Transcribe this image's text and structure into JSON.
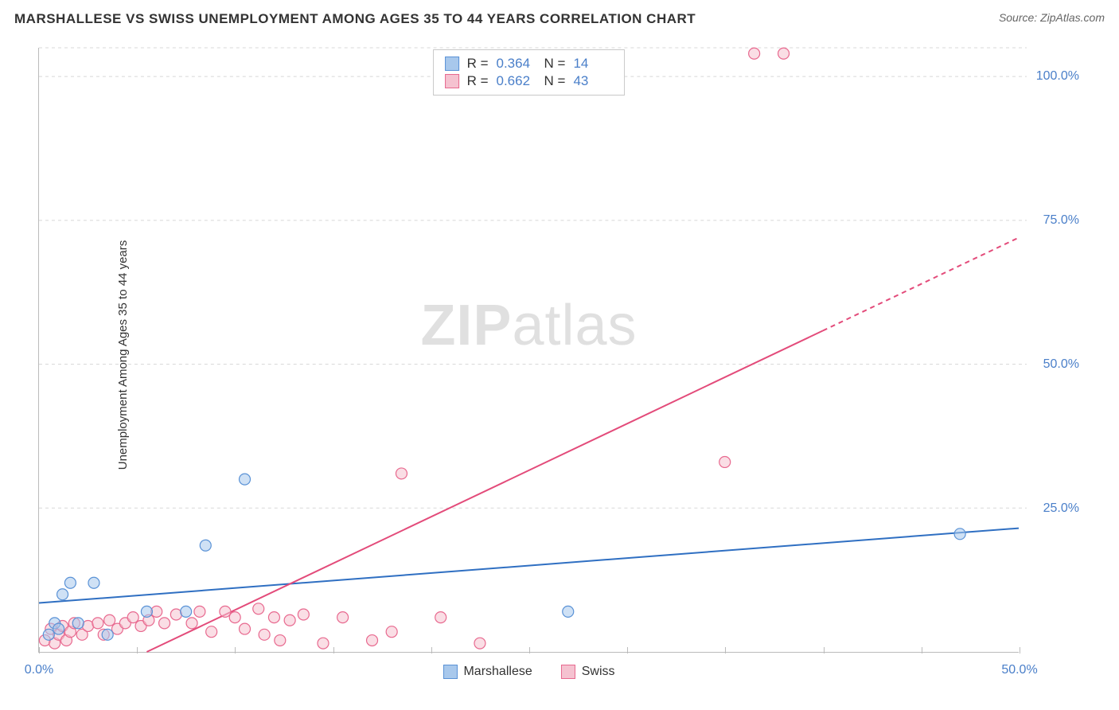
{
  "title": "MARSHALLESE VS SWISS UNEMPLOYMENT AMONG AGES 35 TO 44 YEARS CORRELATION CHART",
  "source_label": "Source: ZipAtlas.com",
  "y_axis_label": "Unemployment Among Ages 35 to 44 years",
  "watermark": {
    "zip": "ZIP",
    "atlas": "atlas"
  },
  "chart": {
    "type": "scatter",
    "xlim": [
      0,
      50
    ],
    "ylim": [
      0,
      105
    ],
    "x_ticks": [
      0,
      5,
      10,
      15,
      20,
      25,
      30,
      35,
      40,
      45,
      50
    ],
    "x_tick_labels": {
      "0": "0.0%",
      "50": "50.0%"
    },
    "y_ticks": [
      25,
      50,
      75,
      100,
      105
    ],
    "y_tick_labels": {
      "25": "25.0%",
      "50": "50.0%",
      "75": "75.0%",
      "100": "100.0%"
    },
    "grid_color": "#d8d8d8",
    "background_color": "#ffffff",
    "series": [
      {
        "name": "Marshallese",
        "color_fill": "#a8c8ec",
        "color_stroke": "#5a92d6",
        "marker_radius": 7,
        "R": "0.364",
        "N": "14",
        "trend": {
          "x1": 0,
          "y1": 8.5,
          "x2": 50,
          "y2": 21.5,
          "color": "#2f6fc2",
          "width": 2
        },
        "points": [
          {
            "x": 0.5,
            "y": 3
          },
          {
            "x": 0.8,
            "y": 5
          },
          {
            "x": 1.0,
            "y": 4
          },
          {
            "x": 1.2,
            "y": 10
          },
          {
            "x": 1.6,
            "y": 12
          },
          {
            "x": 2.0,
            "y": 5
          },
          {
            "x": 2.8,
            "y": 12
          },
          {
            "x": 3.5,
            "y": 3
          },
          {
            "x": 5.5,
            "y": 7
          },
          {
            "x": 7.5,
            "y": 7
          },
          {
            "x": 8.5,
            "y": 18.5
          },
          {
            "x": 10.5,
            "y": 30
          },
          {
            "x": 27.0,
            "y": 7
          },
          {
            "x": 47.0,
            "y": 20.5
          }
        ]
      },
      {
        "name": "Swiss",
        "color_fill": "#f5c2d0",
        "color_stroke": "#e8698f",
        "marker_radius": 7,
        "R": "0.662",
        "N": "43",
        "trend": {
          "x1": 5.5,
          "y1": 0,
          "x2": 50,
          "y2": 72,
          "color": "#e34b7a",
          "width": 2,
          "dash_after_x": 40
        },
        "points": [
          {
            "x": 0.3,
            "y": 2
          },
          {
            "x": 0.6,
            "y": 4
          },
          {
            "x": 0.8,
            "y": 1.5
          },
          {
            "x": 1.0,
            "y": 3
          },
          {
            "x": 1.2,
            "y": 4.5
          },
          {
            "x": 1.4,
            "y": 2
          },
          {
            "x": 1.6,
            "y": 3.5
          },
          {
            "x": 1.8,
            "y": 5
          },
          {
            "x": 2.2,
            "y": 3
          },
          {
            "x": 2.5,
            "y": 4.5
          },
          {
            "x": 3.0,
            "y": 5
          },
          {
            "x": 3.3,
            "y": 3
          },
          {
            "x": 3.6,
            "y": 5.5
          },
          {
            "x": 4.0,
            "y": 4
          },
          {
            "x": 4.4,
            "y": 5
          },
          {
            "x": 4.8,
            "y": 6
          },
          {
            "x": 5.2,
            "y": 4.5
          },
          {
            "x": 5.6,
            "y": 5.5
          },
          {
            "x": 6.0,
            "y": 7
          },
          {
            "x": 6.4,
            "y": 5
          },
          {
            "x": 7.0,
            "y": 6.5
          },
          {
            "x": 7.8,
            "y": 5
          },
          {
            "x": 8.2,
            "y": 7
          },
          {
            "x": 8.8,
            "y": 3.5
          },
          {
            "x": 9.5,
            "y": 7
          },
          {
            "x": 10.0,
            "y": 6
          },
          {
            "x": 10.5,
            "y": 4
          },
          {
            "x": 11.2,
            "y": 7.5
          },
          {
            "x": 11.5,
            "y": 3
          },
          {
            "x": 12.0,
            "y": 6
          },
          {
            "x": 12.3,
            "y": 2
          },
          {
            "x": 12.8,
            "y": 5.5
          },
          {
            "x": 13.5,
            "y": 6.5
          },
          {
            "x": 14.5,
            "y": 1.5
          },
          {
            "x": 15.5,
            "y": 6
          },
          {
            "x": 17.0,
            "y": 2
          },
          {
            "x": 18.0,
            "y": 3.5
          },
          {
            "x": 18.5,
            "y": 31
          },
          {
            "x": 20.5,
            "y": 6
          },
          {
            "x": 22.5,
            "y": 1.5
          },
          {
            "x": 35.0,
            "y": 33
          },
          {
            "x": 36.5,
            "y": 104
          },
          {
            "x": 38.0,
            "y": 104
          }
        ]
      }
    ],
    "legend": [
      "Marshallese",
      "Swiss"
    ]
  }
}
